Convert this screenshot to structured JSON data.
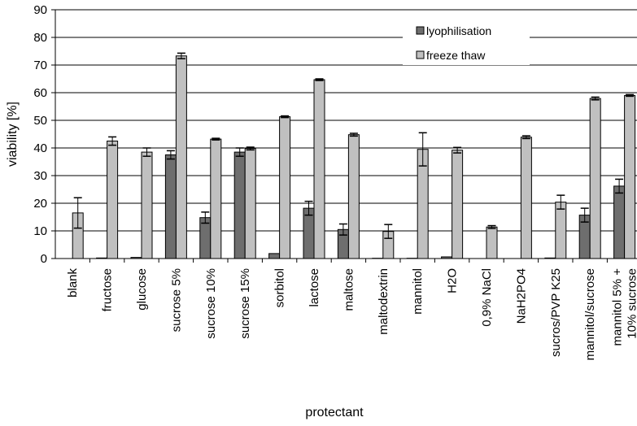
{
  "chart_data": {
    "type": "bar",
    "xlabel": "protectant",
    "ylabel": "viability [%]",
    "ylim": [
      0,
      90
    ],
    "yticks": [
      0,
      10,
      20,
      30,
      40,
      50,
      60,
      70,
      80,
      90
    ],
    "grid": "horizontal major gridlines",
    "legend_position": "top-right",
    "categories": [
      [
        "blank"
      ],
      [
        "fructose"
      ],
      [
        "glucose"
      ],
      [
        "sucrose 5%"
      ],
      [
        "sucrose 10%"
      ],
      [
        "sucrose 15%"
      ],
      [
        "sorbitol"
      ],
      [
        "lactose"
      ],
      [
        "maltose"
      ],
      [
        "maltodextrin"
      ],
      [
        "mannitol"
      ],
      [
        "H2O"
      ],
      [
        "0,9% NaCl"
      ],
      [
        "NaH2PO4"
      ],
      [
        "sucros/PVP K25"
      ],
      [
        "mannitol/sucrose"
      ],
      [
        "mannitol 5% +",
        "10% sucrose"
      ]
    ],
    "series": [
      {
        "name": "lyophilisation",
        "color": "#6e6e6e",
        "values": [
          0,
          0.2,
          0.4,
          37.5,
          14.8,
          38.5,
          1.8,
          18.2,
          10.5,
          0.1,
          0.1,
          0.6,
          0,
          0,
          0.2,
          15.7,
          26.2
        ],
        "errors": [
          0,
          0,
          0,
          1.5,
          2.0,
          1.5,
          0,
          2.5,
          2.0,
          0,
          0,
          0,
          0,
          0,
          0,
          2.5,
          2.5
        ]
      },
      {
        "name": "freeze thaw",
        "color": "#c0c0c0",
        "values": [
          16.5,
          42.5,
          38.5,
          73.3,
          43.2,
          39.8,
          51.3,
          64.7,
          44.8,
          9.8,
          39.5,
          39.2,
          11.4,
          43.9,
          20.4,
          57.9,
          59.0
        ],
        "errors": [
          5.5,
          1.5,
          1.5,
          1.0,
          0.3,
          0.5,
          0.3,
          0.3,
          0.5,
          2.5,
          6.0,
          1.0,
          0.5,
          0.5,
          2.5,
          0.5,
          0.3
        ]
      }
    ]
  }
}
